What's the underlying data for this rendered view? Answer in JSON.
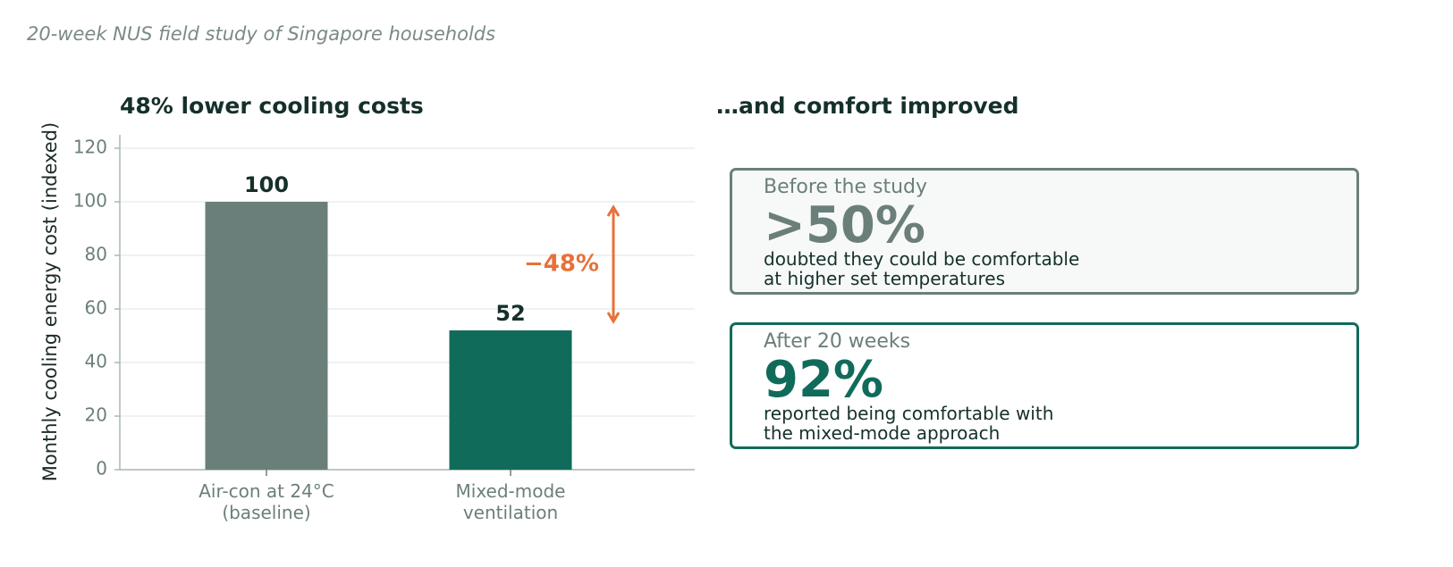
{
  "header": {
    "subtitle": "20-week NUS field study of Singapore households"
  },
  "chart_data": {
    "type": "bar",
    "title": "48% lower cooling costs",
    "ylabel": "Monthly cooling energy cost (indexed)",
    "categories": [
      "Air-con at 24°C\n(baseline)",
      "Mixed-mode\nventilation"
    ],
    "values": [
      100,
      52
    ],
    "colors": [
      "#6b7f7a",
      "#116b5b"
    ],
    "ylim": [
      0,
      125
    ],
    "yticks": [
      0,
      20,
      40,
      60,
      80,
      100,
      120
    ],
    "grid": true,
    "annotation": "−48%",
    "annotation_color": "#e8703a"
  },
  "panel": {
    "title": "…and comfort improved",
    "cards": [
      {
        "label": "Before the study",
        "value": ">50%",
        "description": "doubted they could be comfortable\nat higher set temperatures",
        "color": "#6b7f7a",
        "background": "#f7f9f8"
      },
      {
        "label": "After 20 weeks",
        "value": "92%",
        "description": "reported being comfortable with\nthe mixed-mode approach",
        "color": "#116b5b",
        "background": "#ffffff"
      }
    ]
  }
}
